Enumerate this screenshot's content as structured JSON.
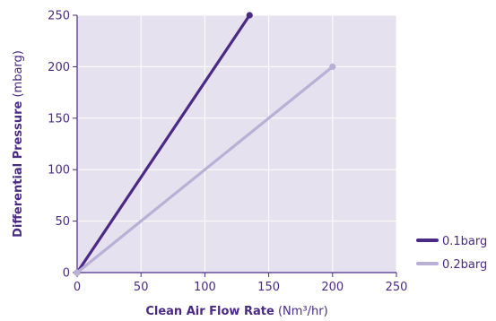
{
  "chart_data": {
    "type": "line",
    "title": "",
    "xlabel_bold": "Clean Air Flow Rate",
    "xlabel_unit": "(Nm³/hr)",
    "ylabel_bold": "Differential Pressure",
    "ylabel_unit": "(mbarg)",
    "xlim": [
      0,
      250
    ],
    "ylim": [
      0,
      250
    ],
    "xticks": [
      0,
      50,
      100,
      150,
      200,
      250
    ],
    "yticks": [
      0,
      50,
      100,
      150,
      200,
      250
    ],
    "grid": true,
    "legend_position": "bottom-right",
    "series": [
      {
        "name": "0.1barg",
        "color": "#4b2a86",
        "x": [
          0,
          135
        ],
        "y": [
          0,
          250
        ]
      },
      {
        "name": "0.2barg",
        "color": "#b9b0d6",
        "x": [
          0,
          200
        ],
        "y": [
          0,
          200
        ]
      }
    ]
  },
  "colors": {
    "plot_background": "#e5e1ef",
    "grid": "#ffffff",
    "axis": "#4b2a86",
    "text": "#4b2a86"
  }
}
